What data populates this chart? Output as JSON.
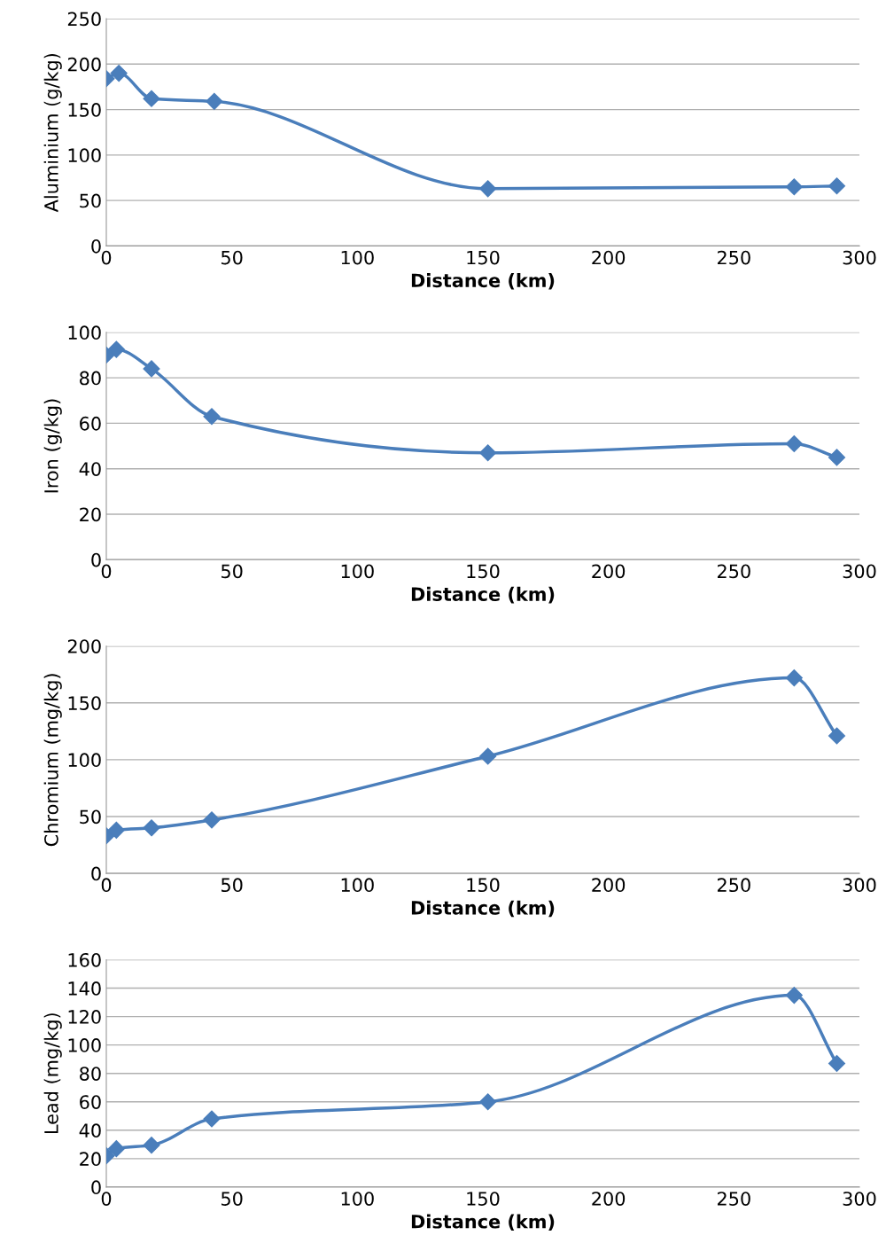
{
  "chart_data": [
    {
      "type": "line",
      "xlabel": "Distance (km)",
      "ylabel": "Aluminium (g/kg)",
      "x": [
        0,
        5,
        18,
        43,
        152,
        274,
        291
      ],
      "series": [
        {
          "color": "#4a7ebb",
          "values": [
            184,
            190,
            162,
            159,
            63,
            65,
            66
          ]
        }
      ],
      "xlim": [
        0,
        300
      ],
      "xticks": [
        0,
        50,
        100,
        150,
        200,
        250,
        300
      ],
      "ylim": [
        0,
        250
      ],
      "yticks": [
        0,
        50,
        100,
        150,
        200,
        250
      ],
      "grid": "y",
      "marker": "diamond",
      "line_style": "solid",
      "legend": false
    },
    {
      "type": "line",
      "xlabel": "Distance (km)",
      "ylabel": "Iron (g/kg)",
      "x": [
        0,
        4,
        18,
        42,
        152,
        274,
        291
      ],
      "series": [
        {
          "color": "#4a7ebb",
          "values": [
            90,
            92.5,
            84,
            63,
            47,
            51,
            45
          ]
        }
      ],
      "xlim": [
        0,
        300
      ],
      "xticks": [
        0,
        50,
        100,
        150,
        200,
        250,
        300
      ],
      "ylim": [
        0,
        100
      ],
      "yticks": [
        0,
        20,
        40,
        60,
        80,
        100
      ],
      "grid": "y",
      "marker": "diamond",
      "line_style": "solid",
      "legend": false
    },
    {
      "type": "line",
      "xlabel": "Distance (km)",
      "ylabel": "Chromium (mg/kg)",
      "x": [
        0,
        4,
        18,
        42,
        152,
        274,
        291
      ],
      "series": [
        {
          "color": "#4a7ebb",
          "values": [
            33,
            38,
            40,
            47,
            103,
            172,
            121
          ]
        }
      ],
      "xlim": [
        0,
        300
      ],
      "xticks": [
        0,
        50,
        100,
        150,
        200,
        250,
        300
      ],
      "ylim": [
        0,
        200
      ],
      "yticks": [
        0,
        50,
        100,
        150,
        200
      ],
      "grid": "y",
      "marker": "diamond",
      "line_style": "solid",
      "legend": false
    },
    {
      "type": "line",
      "xlabel": "Distance (km)",
      "ylabel": "Lead (mg/kg)",
      "x": [
        0,
        4,
        18,
        42,
        152,
        274,
        291
      ],
      "series": [
        {
          "color": "#4a7ebb",
          "values": [
            22,
            27,
            29.5,
            48,
            60,
            135,
            87
          ]
        }
      ],
      "xlim": [
        0,
        300
      ],
      "xticks": [
        0,
        50,
        100,
        150,
        200,
        250,
        300
      ],
      "ylim": [
        0,
        160
      ],
      "yticks": [
        0,
        20,
        40,
        60,
        80,
        100,
        120,
        140,
        160
      ],
      "grid": "y",
      "marker": "diamond",
      "line_style": "solid",
      "legend": false
    }
  ]
}
